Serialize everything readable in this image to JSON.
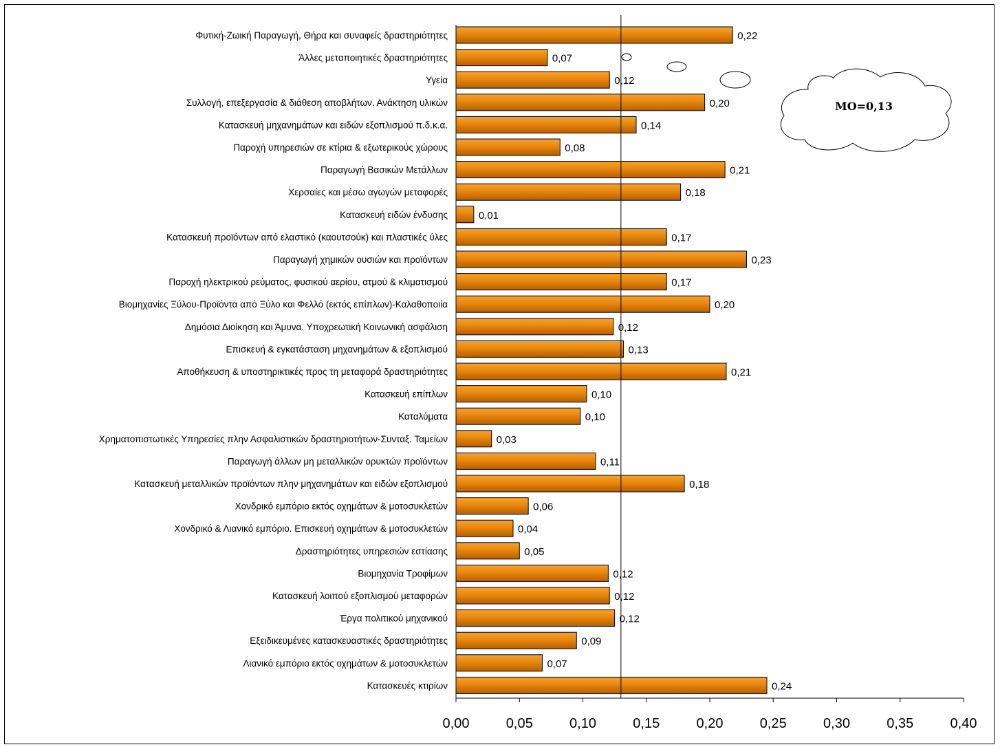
{
  "chart_data": {
    "type": "bar",
    "orientation": "horizontal",
    "title": "",
    "xlabel": "",
    "ylabel": "",
    "xlim": [
      0,
      0.4
    ],
    "x_ticks": [
      "0,00",
      "0,05",
      "0,10",
      "0,15",
      "0,20",
      "0,25",
      "0,30",
      "0,35",
      "0,40"
    ],
    "grid": false,
    "legend": "none",
    "bar_color": "#e8870c",
    "reference_line": {
      "value": 0.13,
      "label": "ΜΟ=0,13"
    },
    "categories": [
      "Φυτική-Ζωική Παραγωγή, Θήρα και συναφείς δραστηριότητες",
      "Άλλες μεταποιητικές δραστηριότητες",
      "Υγεία",
      "Συλλογή, επεξεργασία & διάθεση αποβλήτων. Ανάκτηση υλικών",
      "Κατασκευή μηχανημάτων και ειδών εξοπλισμού π.δ.κ.α.",
      "Παροχή υπηρεσιών σε κτίρια & εξωτερικούς χώρους",
      "Παραγωγή Βασικών Μετάλλων",
      "Χερσαίες και μέσω αγωγών μεταφορές",
      "Κατασκευή ειδών ένδυσης",
      "Κατασκευή προϊόντων από ελαστικό (καουτσούκ) και πλαστικές ύλες",
      "Παραγωγή χημικών ουσιών και προϊόντων",
      "Παροχή ηλεκτρικού ρεύματος, φυσικού αερίου, ατμού & κλιματισμού",
      "Βιομηχανίες Ξύλου-Προϊόντα από Ξύλο και Φελλό (εκτός επίπλων)-Καλαθοποιία",
      "Δημόσια Διοίκηση και Άμυνα. Υποχρεωτική Κοινωνική ασφάλιση",
      "Επισκευή & εγκατάσταση μηχανημάτων & εξοπλισμού",
      "Αποθήκευση & υποστηρικτικές προς τη μεταφορά δραστηριότητες",
      "Κατασκευή επίπλων",
      "Καταλύματα",
      "Χρηματοπιστωτικές Υπηρεσίες πλην Ασφαλιστικών δραστηριοτήτων-Συνταξ. Ταμείων",
      "Παραγωγή άλλων μη μεταλλικών ορυκτών προϊόντων",
      "Κατασκευή μεταλλικών προϊόντων πλην μηχανημάτων και ειδών εξοπλισμού",
      "Χονδρικό εμπόριο εκτός οχημάτων & μοτοσυκλετών",
      "Χονδρικό & Λιανικό εμπόριο. Επισκευή οχημάτων & μοτοσυκλετών",
      "Δραστηριότητες υπηρεσιών εστίασης",
      "Βιομηχανία Τροφίμων",
      "Κατασκευή λοιπού εξοπλισμού μεταφορών",
      "Έργα πολιτικού μηχανικού",
      "Εξειδικευμένες κατασκευαστικές δραστηριότητες",
      "Λιανικό εμπόριο εκτός οχημάτων & μοτοσυκλετών",
      "Κατασκευές κτιρίων"
    ],
    "values": [
      0.218,
      0.072,
      0.121,
      0.196,
      0.142,
      0.082,
      0.212,
      0.177,
      0.014,
      0.166,
      0.229,
      0.166,
      0.2,
      0.124,
      0.132,
      0.213,
      0.103,
      0.098,
      0.028,
      0.11,
      0.18,
      0.057,
      0.045,
      0.05,
      0.12,
      0.121,
      0.125,
      0.095,
      0.068,
      0.245
    ],
    "value_labels": [
      "0,22",
      "0,07",
      "0,12",
      "0,20",
      "0,14",
      "0,08",
      "0,21",
      "0,18",
      "0,01",
      "0,17",
      "0,23",
      "0,17",
      "0,20",
      "0,12",
      "0,13",
      "0,21",
      "0,10",
      "0,10",
      "0,03",
      "0,11",
      "0,18",
      "0,06",
      "0,04",
      "0,05",
      "0,12",
      "0,12",
      "0,12",
      "0,09",
      "0,07",
      "0,24"
    ]
  }
}
